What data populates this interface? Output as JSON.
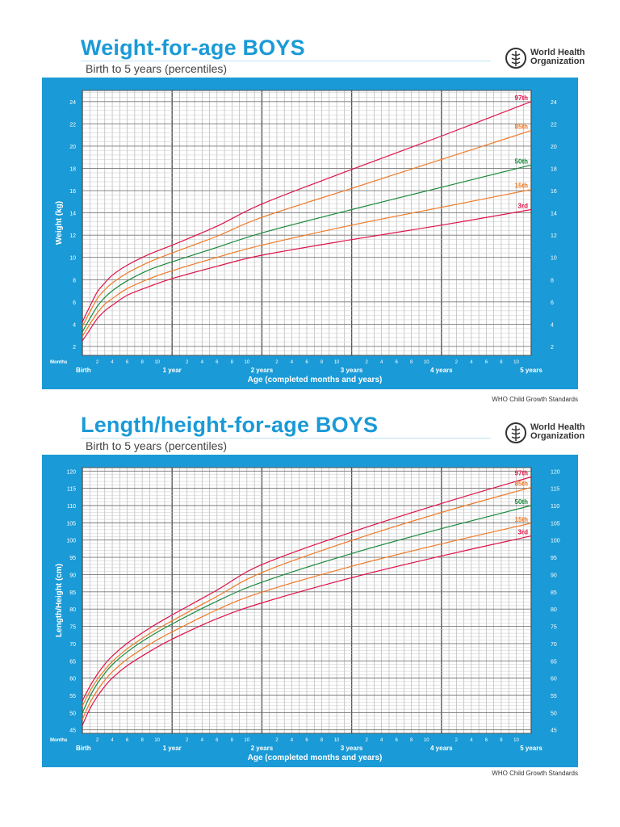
{
  "colors": {
    "brand": "#1a9ad6",
    "p97": "#e0134a",
    "p85": "#f07a26",
    "p50": "#1c8a3c",
    "p15": "#f07a26",
    "p3": "#e0134a"
  },
  "who": {
    "name_line1": "World Health",
    "name_line2": "Organization",
    "icon": "who-emblem-icon"
  },
  "charts_meta": [
    {
      "title": "Weight-for-age BOYS",
      "subtitle": "Birth to 5 years (percentiles)",
      "credit": "WHO Child Growth Standards"
    },
    {
      "title": "Length/height-for-age BOYS",
      "subtitle": "Birth to 5 years (percentiles)",
      "credit": "WHO Child Growth Standards"
    }
  ],
  "chart_data": [
    {
      "type": "line",
      "title": "Weight-for-age BOYS",
      "subtitle": "Birth to 5 years (percentiles)",
      "xlabel": "Age (completed months and years)",
      "ylabel": "Weight (kg)",
      "x_unit_label": "Months",
      "xlim": [
        0,
        60
      ],
      "ylim": [
        1.2,
        25
      ],
      "y_ticks": [
        2,
        4,
        6,
        8,
        10,
        12,
        14,
        16,
        18,
        20,
        22,
        24
      ],
      "x_month_ticks": [
        2,
        4,
        6,
        8,
        10,
        2,
        4,
        6,
        8,
        10,
        2,
        4,
        6,
        8,
        10,
        2,
        4,
        6,
        8,
        10,
        2,
        4,
        6,
        8,
        10
      ],
      "x_year_labels": [
        "Birth",
        "1 year",
        "2 years",
        "3 years",
        "4 years",
        "5 years"
      ],
      "grid": true,
      "x": [
        0,
        1,
        2,
        3,
        4,
        6,
        9,
        12,
        18,
        24,
        36,
        48,
        60
      ],
      "series": [
        {
          "name": "97th",
          "values": [
            4.2,
            5.6,
            6.9,
            7.7,
            8.4,
            9.3,
            10.3,
            11.1,
            12.8,
            14.8,
            17.9,
            20.9,
            24.0
          ]
        },
        {
          "name": "85th",
          "values": [
            3.8,
            5.1,
            6.3,
            7.1,
            7.7,
            8.6,
            9.6,
            10.4,
            11.9,
            13.6,
            16.2,
            18.8,
            21.4
          ]
        },
        {
          "name": "50th",
          "values": [
            3.3,
            4.5,
            5.6,
            6.4,
            7.0,
            7.9,
            8.9,
            9.6,
            10.9,
            12.2,
            14.3,
            16.3,
            18.3
          ]
        },
        {
          "name": "15th",
          "values": [
            2.9,
            4.0,
            5.0,
            5.8,
            6.3,
            7.2,
            8.1,
            8.8,
            10.0,
            11.1,
            12.9,
            14.5,
            16.1
          ]
        },
        {
          "name": "3rd",
          "values": [
            2.5,
            3.5,
            4.5,
            5.2,
            5.7,
            6.6,
            7.4,
            8.1,
            9.2,
            10.2,
            11.6,
            12.9,
            14.3
          ]
        }
      ]
    },
    {
      "type": "line",
      "title": "Length/height-for-age BOYS",
      "subtitle": "Birth to 5 years (percentiles)",
      "xlabel": "Age (completed months and years)",
      "ylabel": "Length/Height (cm)",
      "x_unit_label": "Months",
      "xlim": [
        0,
        60
      ],
      "ylim": [
        44,
        121
      ],
      "y_ticks": [
        45,
        50,
        55,
        60,
        65,
        70,
        75,
        80,
        85,
        90,
        95,
        100,
        105,
        110,
        115,
        120
      ],
      "x_month_ticks": [
        2,
        4,
        6,
        8,
        10,
        2,
        4,
        6,
        8,
        10,
        2,
        4,
        6,
        8,
        10,
        2,
        4,
        6,
        8,
        10,
        2,
        4,
        6,
        8,
        10
      ],
      "x_year_labels": [
        "Birth",
        "1 year",
        "2 years",
        "3 years",
        "4 years",
        "5 years"
      ],
      "grid": true,
      "x": [
        0,
        1,
        2,
        3,
        4,
        6,
        9,
        12,
        18,
        24,
        36,
        48,
        60
      ],
      "series": [
        {
          "name": "97th",
          "values": [
            53.4,
            57.6,
            61.1,
            64.0,
            66.4,
            70.1,
            74.5,
            78.3,
            85.5,
            92.9,
            102.3,
            110.6,
            118.3
          ]
        },
        {
          "name": "85th",
          "values": [
            51.9,
            56.2,
            59.6,
            62.4,
            64.8,
            68.5,
            72.9,
            76.6,
            83.7,
            90.6,
            99.9,
            108.0,
            115.3
          ]
        },
        {
          "name": "50th",
          "values": [
            49.9,
            54.7,
            58.4,
            61.4,
            63.9,
            67.6,
            72.0,
            75.7,
            82.3,
            87.8,
            96.1,
            103.3,
            110.0
          ]
        },
        {
          "name": "15th",
          "values": [
            48.0,
            52.8,
            56.4,
            59.4,
            61.8,
            65.5,
            69.8,
            73.4,
            79.8,
            84.9,
            92.4,
            98.9,
            104.9
          ]
        },
        {
          "name": "3rd",
          "values": [
            46.3,
            51.1,
            54.7,
            57.6,
            60.0,
            63.6,
            67.7,
            71.3,
            77.2,
            81.8,
            89.1,
            95.4,
            101.2
          ]
        }
      ]
    }
  ]
}
